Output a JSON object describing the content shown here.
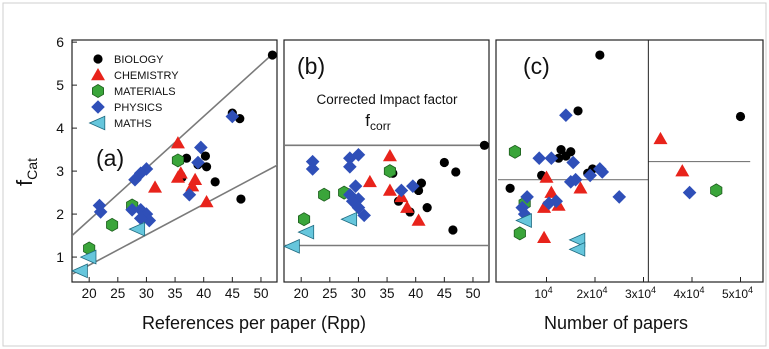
{
  "colors": {
    "BIOLOGY": "#000000",
    "CHEMISTRY": "#e8231b",
    "MATERIALS": "#3aa53a",
    "PHYSICS": "#2f4fb8",
    "MATHS": "#66c6dc",
    "fitline": "#7a7a7a"
  },
  "legend": [
    {
      "key": "BIOLOGY",
      "label": "BIOLOGY",
      "marker": "circle"
    },
    {
      "key": "CHEMISTRY",
      "label": "CHEMISTRY",
      "marker": "triangle-up"
    },
    {
      "key": "MATERIALS",
      "label": "MATERIALS",
      "marker": "hexagon"
    },
    {
      "key": "PHYSICS",
      "label": "PHYSICS",
      "marker": "diamond"
    },
    {
      "key": "MATHS",
      "label": "MATHS",
      "marker": "triangle-left"
    }
  ],
  "chart_data": [
    {
      "panel": "(a)",
      "type": "scatter",
      "xlabel": "References per paper (Rpp)",
      "ylabel": "f",
      "ylabel_sub": "Cat",
      "xlim": [
        17,
        53
      ],
      "ylim": [
        0.5,
        6.1
      ],
      "xticks": [
        20,
        25,
        30,
        35,
        40,
        45,
        50
      ],
      "yticks": [
        1,
        2,
        3,
        4,
        5,
        6
      ],
      "lines": [
        {
          "x": [
            17,
            52
          ],
          "y": [
            1.5,
            5.72
          ]
        },
        {
          "x": [
            17,
            53
          ],
          "y": [
            0.6,
            3.15
          ]
        }
      ],
      "series": [
        {
          "name": "BIOLOGY",
          "points": [
            [
              52,
              5.7
            ],
            [
              45,
              4.35
            ],
            [
              46.3,
              4.22
            ],
            [
              40.5,
              3.1
            ],
            [
              40.3,
              3.35
            ],
            [
              39,
              3.15
            ],
            [
              42,
              2.75
            ],
            [
              46.5,
              2.35
            ],
            [
              36.2,
              2.85
            ],
            [
              36,
              2.9
            ],
            [
              37,
              3.3
            ]
          ]
        },
        {
          "name": "CHEMISTRY",
          "points": [
            [
              35.5,
              3.65
            ],
            [
              36,
              2.95
            ],
            [
              35.5,
              2.85
            ],
            [
              38.5,
              2.8
            ],
            [
              38,
              2.65
            ],
            [
              31.5,
              2.62
            ],
            [
              40.5,
              2.28
            ]
          ]
        },
        {
          "name": "MATERIALS",
          "points": [
            [
              35.5,
              3.25
            ],
            [
              27.5,
              2.2
            ],
            [
              24,
              1.75
            ],
            [
              20,
              1.2
            ]
          ]
        },
        {
          "name": "PHYSICS",
          "points": [
            [
              45,
              4.27
            ],
            [
              39.5,
              3.55
            ],
            [
              30,
              3.05
            ],
            [
              29,
              2.95
            ],
            [
              28,
              2.8
            ],
            [
              39,
              3.2
            ],
            [
              37.5,
              2.45
            ],
            [
              21.8,
              2.2
            ],
            [
              22,
              2.05
            ],
            [
              27.5,
              2.1
            ],
            [
              29,
              2.1
            ],
            [
              30,
              2.0
            ],
            [
              30.5,
              1.85
            ],
            [
              29,
              1.9
            ]
          ]
        },
        {
          "name": "MATHS",
          "points": [
            [
              28.5,
              1.65
            ],
            [
              20,
              1.0
            ],
            [
              18.5,
              0.68
            ]
          ]
        }
      ]
    },
    {
      "panel": "(b)",
      "type": "scatter",
      "title": "Corrected Impact factor",
      "annotation": "f",
      "annotation_sub": "corr",
      "xlim": [
        17,
        53
      ],
      "ylim": [
        0.5,
        6.1
      ],
      "xticks": [
        20,
        25,
        30,
        35,
        40,
        45,
        50
      ],
      "lines": [
        {
          "x": [
            17,
            53
          ],
          "y": [
            3.6,
            3.6
          ]
        },
        {
          "x": [
            17,
            53
          ],
          "y": [
            1.27,
            1.27
          ]
        }
      ],
      "series": [
        {
          "name": "BIOLOGY",
          "points": [
            [
              52,
              3.6
            ],
            [
              45,
              3.2
            ],
            [
              47,
              2.98
            ],
            [
              41,
              2.72
            ],
            [
              40.5,
              2.55
            ],
            [
              37,
              2.3
            ],
            [
              42,
              2.15
            ],
            [
              39,
              2.05
            ],
            [
              46.5,
              1.63
            ],
            [
              36,
              2.95
            ]
          ]
        },
        {
          "name": "CHEMISTRY",
          "points": [
            [
              35.5,
              3.35
            ],
            [
              35.5,
              2.55
            ],
            [
              32,
              2.75
            ],
            [
              37.5,
              2.4
            ],
            [
              38.5,
              2.15
            ],
            [
              40.5,
              1.85
            ]
          ]
        },
        {
          "name": "MATERIALS",
          "points": [
            [
              35.5,
              3.0
            ],
            [
              27.5,
              2.5
            ],
            [
              24,
              2.45
            ],
            [
              20.5,
              1.88
            ]
          ]
        },
        {
          "name": "PHYSICS",
          "points": [
            [
              30,
              3.38
            ],
            [
              28.5,
              3.3
            ],
            [
              22,
              3.22
            ],
            [
              22,
              3.05
            ],
            [
              28.5,
              3.1
            ],
            [
              29.5,
              2.65
            ],
            [
              39.5,
              2.65
            ],
            [
              37.5,
              2.55
            ],
            [
              28.5,
              2.45
            ],
            [
              30,
              2.35
            ],
            [
              29,
              2.3
            ],
            [
              30,
              2.15
            ],
            [
              31,
              1.97
            ]
          ]
        },
        {
          "name": "MATHS",
          "points": [
            [
              28.5,
              1.88
            ],
            [
              21,
              1.58
            ],
            [
              18.5,
              1.25
            ]
          ]
        }
      ]
    },
    {
      "panel": "(c)",
      "type": "scatter",
      "xlabel": "Number of papers",
      "xlim": [
        0,
        52000
      ],
      "ylim": [
        0.5,
        6.1
      ],
      "xtick_labels": [
        "10",
        "2x10",
        "3x10",
        "4x10",
        "5x10"
      ],
      "xtick_exponent": "4",
      "xtick_values": [
        10000,
        20000,
        30000,
        40000,
        50000
      ],
      "split_x": 31000,
      "lines": [
        {
          "x": [
            0,
            31000
          ],
          "y": [
            2.8,
            2.8
          ]
        },
        {
          "x": [
            31000,
            52000
          ],
          "y": [
            3.22,
            3.22
          ]
        }
      ],
      "series": [
        {
          "name": "BIOLOGY",
          "points": [
            [
              21000,
              5.7
            ],
            [
              16500,
              4.4
            ],
            [
              13000,
              3.5
            ],
            [
              15000,
              3.45
            ],
            [
              12500,
              3.3
            ],
            [
              14000,
              3.35
            ],
            [
              19500,
              3.05
            ],
            [
              18500,
              2.95
            ],
            [
              9000,
              2.9
            ],
            [
              2500,
              2.6
            ],
            [
              50000,
              4.27
            ]
          ]
        },
        {
          "name": "CHEMISTRY",
          "points": [
            [
              17000,
              2.6
            ],
            [
              11000,
              2.5
            ],
            [
              10000,
              2.85
            ],
            [
              9500,
              2.15
            ],
            [
              12500,
              2.2
            ],
            [
              9500,
              1.45
            ],
            [
              33500,
              3.75
            ],
            [
              38000,
              3.0
            ]
          ]
        },
        {
          "name": "MATERIALS",
          "points": [
            [
              3500,
              3.45
            ],
            [
              5500,
              2.25
            ],
            [
              4500,
              1.55
            ],
            [
              45000,
              2.55
            ]
          ]
        },
        {
          "name": "PHYSICS",
          "points": [
            [
              14000,
              4.3
            ],
            [
              8500,
              3.3
            ],
            [
              11000,
              3.3
            ],
            [
              15500,
              3.2
            ],
            [
              21000,
              3.05
            ],
            [
              21500,
              2.98
            ],
            [
              19000,
              2.9
            ],
            [
              15000,
              2.75
            ],
            [
              16000,
              2.8
            ],
            [
              6000,
              2.4
            ],
            [
              10500,
              2.25
            ],
            [
              12000,
              2.3
            ],
            [
              5000,
              2.15
            ],
            [
              5500,
              2.0
            ],
            [
              25000,
              2.4
            ],
            [
              39500,
              2.5
            ]
          ]
        },
        {
          "name": "MATHS",
          "points": [
            [
              5500,
              1.85
            ],
            [
              16500,
              1.4
            ],
            [
              16500,
              1.18
            ]
          ]
        }
      ]
    }
  ]
}
